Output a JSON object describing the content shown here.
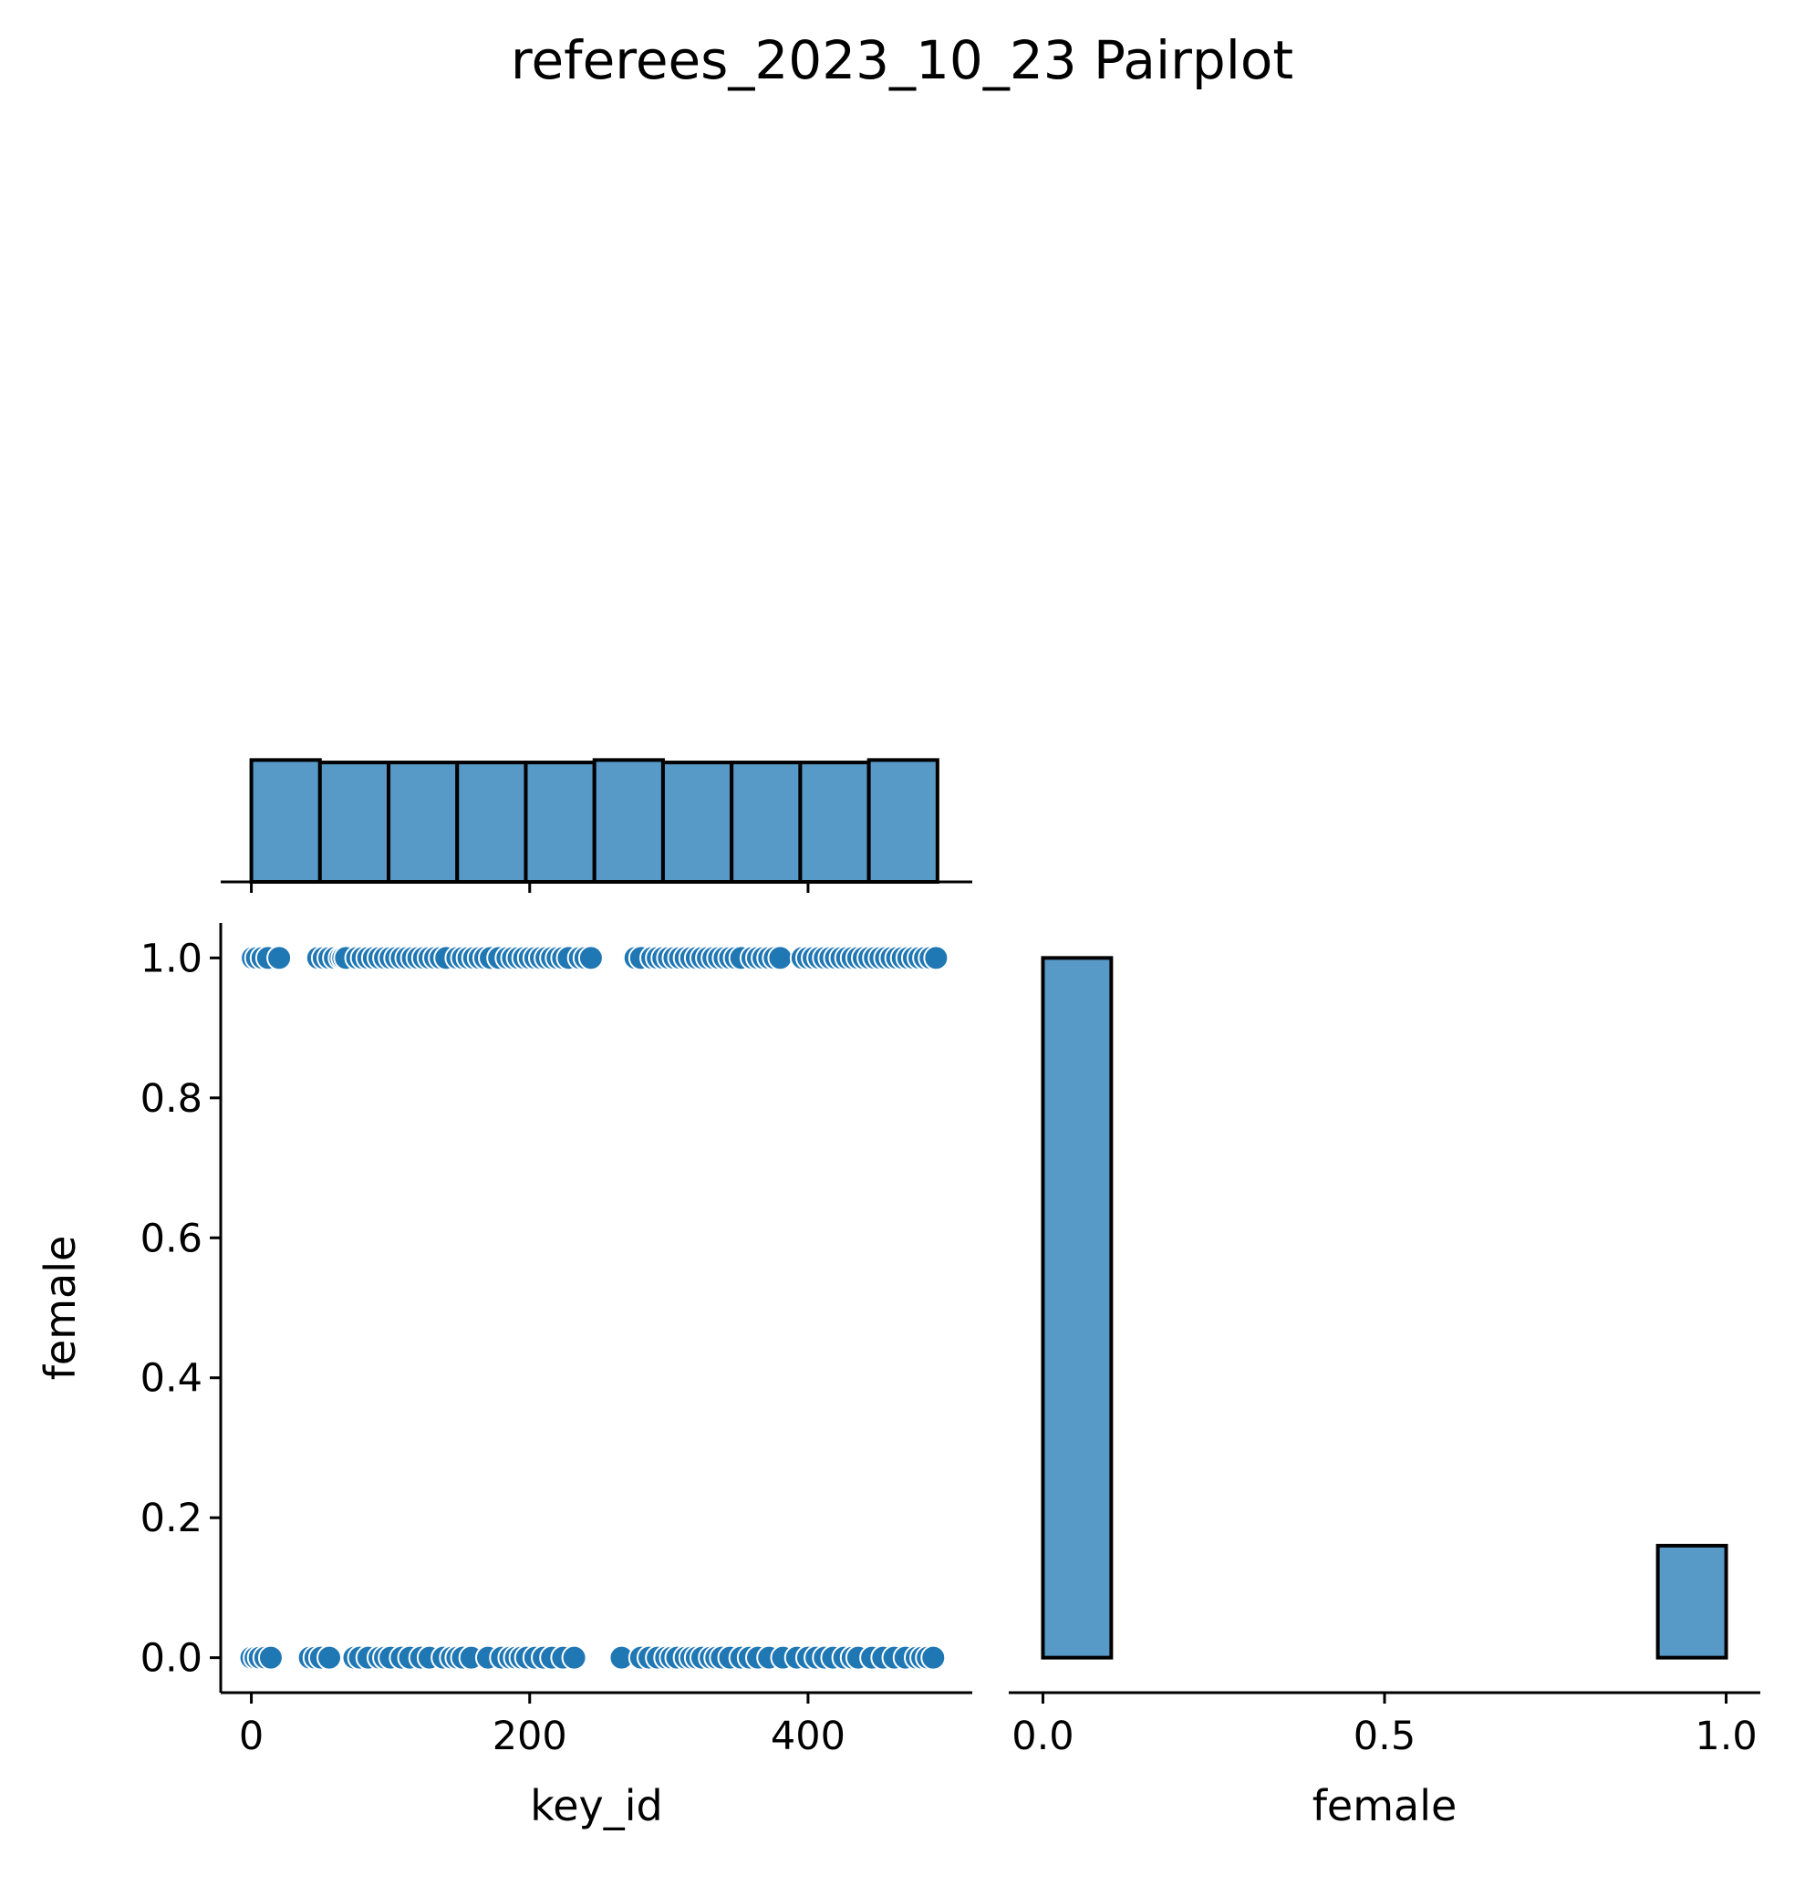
{
  "chart_data": [
    {
      "type": "bar",
      "panel": "diagonal histogram of key_id",
      "bin_edges": [
        0,
        49.3,
        98.6,
        147.9,
        197.2,
        246.5,
        295.8,
        345.1,
        394.4,
        443.7,
        493
      ],
      "values": [
        50,
        49,
        49,
        49,
        49,
        50,
        49,
        49,
        49,
        50
      ],
      "color": "#5799c7",
      "xlim": [
        -22,
        518
      ],
      "x_ticks": [
        0,
        200,
        400
      ],
      "ylim": [
        0,
        55
      ],
      "y_axis_shown": false
    },
    {
      "type": "scatter",
      "panel": "key_id vs female",
      "xlabel": "key_id",
      "ylabel": "female",
      "xlim": [
        -22,
        518
      ],
      "ylim": [
        -0.05,
        1.05
      ],
      "x_ticks": [
        0,
        200,
        400
      ],
      "y_ticks": [
        0.0,
        0.2,
        0.4,
        0.6,
        0.8,
        1.0
      ],
      "y_tick_labels": [
        "0.0",
        "0.2",
        "0.4",
        "0.6",
        "0.8",
        "1.0"
      ],
      "color": "#1f77b4",
      "series": [
        {
          "x": [
            1,
            4,
            8,
            12,
            20,
            48,
            52,
            56,
            60,
            64,
            66,
            68,
            76,
            80,
            84,
            88,
            92,
            96,
            100,
            104,
            108,
            112,
            116,
            120,
            124,
            128,
            132,
            136,
            140,
            148,
            152,
            156,
            160,
            164,
            168,
            172,
            178,
            184,
            188,
            192,
            196,
            200,
            204,
            208,
            212,
            216,
            220,
            224,
            228,
            236,
            240,
            244,
            276,
            280,
            288,
            292,
            296,
            300,
            304,
            308,
            312,
            316,
            320,
            324,
            328,
            332,
            336,
            340,
            344,
            348,
            352,
            360,
            364,
            368,
            372,
            376,
            380,
            396,
            400,
            404,
            408,
            412,
            416,
            420,
            424,
            428,
            432,
            436,
            440,
            444,
            448,
            452,
            456,
            460,
            464,
            468,
            472,
            476,
            480,
            484,
            488,
            492
          ],
          "y": [
            1,
            1,
            1,
            1,
            1,
            1,
            1,
            1,
            1,
            1,
            1,
            1,
            1,
            1,
            1,
            1,
            1,
            1,
            1,
            1,
            1,
            1,
            1,
            1,
            1,
            1,
            1,
            1,
            1,
            1,
            1,
            1,
            1,
            1,
            1,
            1,
            1,
            1,
            1,
            1,
            1,
            1,
            1,
            1,
            1,
            1,
            1,
            1,
            1,
            1,
            1,
            1,
            1,
            1,
            1,
            1,
            1,
            1,
            1,
            1,
            1,
            1,
            1,
            1,
            1,
            1,
            1,
            1,
            1,
            1,
            1,
            1,
            1,
            1,
            1,
            1,
            1,
            1,
            1,
            1,
            1,
            1,
            1,
            1,
            1,
            1,
            1,
            1,
            1,
            1,
            1,
            1,
            1,
            1,
            1,
            1,
            1,
            1,
            1,
            1,
            1,
            1
          ]
        },
        {
          "x": [
            0,
            3,
            6,
            10,
            14,
            42,
            46,
            50,
            56,
            74,
            78,
            84,
            92,
            96,
            100,
            108,
            114,
            122,
            128,
            138,
            144,
            148,
            152,
            158,
            170,
            180,
            186,
            190,
            194,
            198,
            204,
            210,
            216,
            224,
            232,
            266,
            280,
            286,
            292,
            298,
            302,
            306,
            312,
            316,
            320,
            324,
            330,
            334,
            338,
            344,
            352,
            358,
            364,
            372,
            382,
            392,
            400,
            406,
            412,
            418,
            426,
            432,
            436,
            446,
            454,
            462,
            470,
            478,
            482,
            486,
            490
          ],
          "y": [
            0,
            0,
            0,
            0,
            0,
            0,
            0,
            0,
            0,
            0,
            0,
            0,
            0,
            0,
            0,
            0,
            0,
            0,
            0,
            0,
            0,
            0,
            0,
            0,
            0,
            0,
            0,
            0,
            0,
            0,
            0,
            0,
            0,
            0,
            0,
            0,
            0,
            0,
            0,
            0,
            0,
            0,
            0,
            0,
            0,
            0,
            0,
            0,
            0,
            0,
            0,
            0,
            0,
            0,
            0,
            0,
            0,
            0,
            0,
            0,
            0,
            0,
            0,
            0,
            0,
            0,
            0,
            0,
            0,
            0,
            0
          ]
        }
      ]
    },
    {
      "type": "bar",
      "panel": "diagonal histogram of female",
      "xlabel": "female",
      "bin_edges": [
        0.0,
        0.1,
        0.2,
        0.3,
        0.4,
        0.5,
        0.6,
        0.7,
        0.8,
        0.9,
        1.0
      ],
      "values": [
        1.0,
        0,
        0,
        0,
        0,
        0,
        0,
        0,
        0,
        0.16
      ],
      "color": "#5799c7",
      "xlim": [
        -0.05,
        1.05
      ],
      "x_ticks": [
        0.0,
        0.5,
        1.0
      ],
      "x_tick_labels": [
        "0.0",
        "0.5",
        "1.0"
      ],
      "ylim": [
        -0.05,
        1.05
      ],
      "y_axis_shown": false
    }
  ],
  "figure": {
    "title": "referees_2023_10_23 Pairplot"
  }
}
